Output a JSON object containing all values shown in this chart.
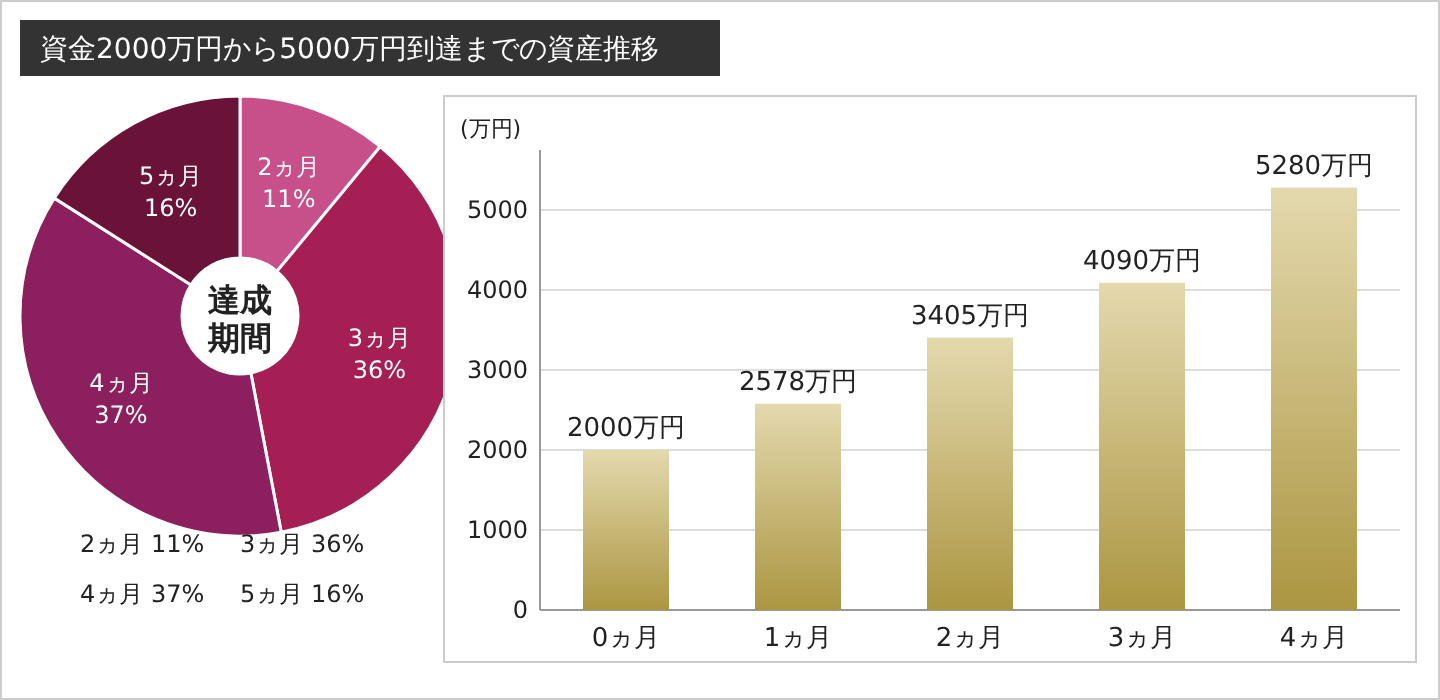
{
  "chart_data": [
    {
      "type": "donut",
      "title": "資金2000万円から5000万円到達までの資産推移",
      "annotations": [
        "達成",
        "期間"
      ],
      "categories": [
        "2ヵ月",
        "3ヵ月",
        "4ヵ月",
        "5ヵ月"
      ],
      "values": [
        11,
        36,
        37,
        16
      ],
      "value_labels": [
        "11%",
        "36%",
        "37%",
        "16%"
      ],
      "colors": [
        "#c8508a",
        "#a51f55",
        "#8c1f5e",
        "#6b1238"
      ]
    },
    {
      "type": "bar",
      "ylabel": "(万円)",
      "categories": [
        "0ヵ月",
        "1ヵ月",
        "2ヵ月",
        "3ヵ月",
        "4ヵ月"
      ],
      "series": [
        {
          "color": "#c2ab4a",
          "values": [
            2000,
            2578,
            3405,
            4090,
            5280
          ]
        }
      ],
      "value_labels": [
        "2000万円",
        "2578万円",
        "3405万円",
        "4090万円",
        "5280万円"
      ],
      "ylim": [
        0,
        5750
      ],
      "yticks": [
        0,
        1000,
        2000,
        3000,
        4000,
        5000
      ],
      "grid": "y"
    }
  ]
}
